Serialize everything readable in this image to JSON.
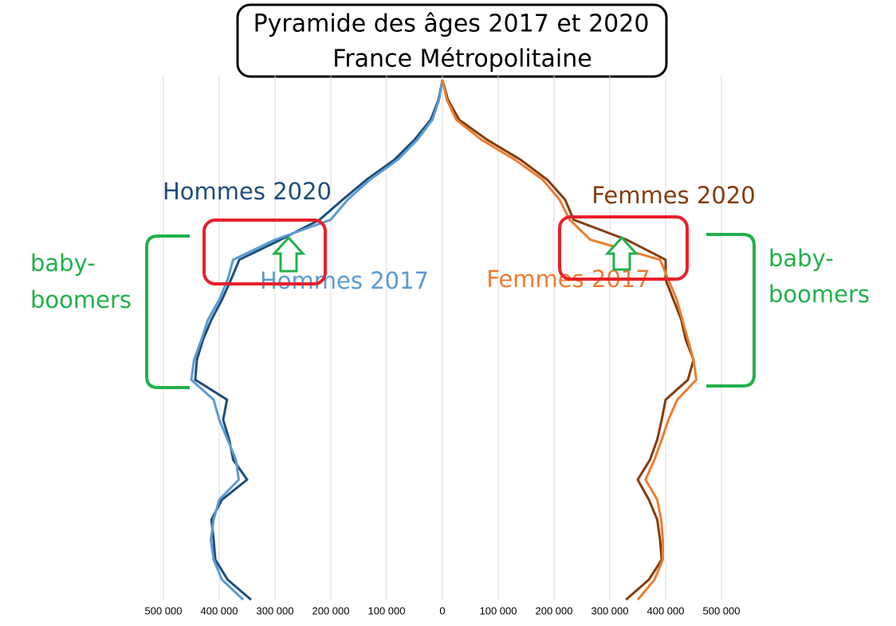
{
  "chart_data": {
    "type": "line",
    "title": [
      "Pyramide des âges 2017 et 2020",
      "France Métropolitaine"
    ],
    "categories": [
      null,
      null,
      null,
      null,
      null,
      null,
      null,
      null,
      null,
      null,
      null,
      null,
      null,
      null,
      null,
      null,
      null,
      null,
      null,
      null,
      null,
      null,
      null,
      null,
      null,
      null,
      null
    ],
    "series": [
      {
        "name": "Hommes 2020",
        "color": "#1f4e79",
        "values": [
          -343000,
          -385000,
          -407000,
          -410000,
          -414000,
          -395000,
          -350000,
          -375000,
          -382000,
          -393000,
          -386000,
          -443000,
          -440000,
          -429000,
          -414000,
          -395000,
          -379000,
          -364000,
          -290000,
          -220000,
          -179000,
          -136000,
          -86000,
          -50000,
          -21000,
          -7000,
          0
        ]
      },
      {
        "name": "Hommes 2017",
        "color": "#5b9bd5",
        "values": [
          -357000,
          -395000,
          -410000,
          -415000,
          -410000,
          -400000,
          -365000,
          -370000,
          -385000,
          -400000,
          -410000,
          -450000,
          -445000,
          -432000,
          -420000,
          -400000,
          -385000,
          -375000,
          -300000,
          -200000,
          -170000,
          -130000,
          -80000,
          -45000,
          -18000,
          -6000,
          0
        ]
      },
      {
        "name": "Femmes 2020",
        "color": "#843c0c",
        "values": [
          329000,
          370000,
          393000,
          390000,
          385000,
          370000,
          350000,
          372000,
          385000,
          393000,
          400000,
          440000,
          450000,
          436000,
          428000,
          414000,
          400000,
          400000,
          330000,
          235000,
          220000,
          188000,
          140000,
          80000,
          30000,
          10000,
          0
        ]
      },
      {
        "name": "Femmes 2017",
        "color": "#ed7d31",
        "values": [
          350000,
          380000,
          395000,
          395000,
          392000,
          385000,
          364000,
          380000,
          393000,
          405000,
          421000,
          455000,
          450000,
          440000,
          430000,
          420000,
          405000,
          390000,
          265000,
          228000,
          210000,
          180000,
          130000,
          70000,
          25000,
          8000,
          0
        ]
      }
    ],
    "xlim": [
      -500000,
      500000
    ],
    "xticks": [
      {
        "value": -500000,
        "label": "500 000"
      },
      {
        "value": -400000,
        "label": "400 000"
      },
      {
        "value": -300000,
        "label": "300 000"
      },
      {
        "value": -200000,
        "label": "200 000"
      },
      {
        "value": -100000,
        "label": "100 000"
      },
      0,
      {
        "value": 100000,
        "label": "100 000"
      },
      {
        "value": 200000,
        "label": "200 000"
      },
      {
        "value": 300000,
        "label": "300 000"
      },
      {
        "value": 400000,
        "label": "400 000"
      },
      {
        "value": 500000,
        "label": "500 000"
      }
    ],
    "grid": true,
    "annotations": [
      [
        "baby-",
        "boomers"
      ],
      [
        "baby-",
        "boomers"
      ]
    ]
  }
}
